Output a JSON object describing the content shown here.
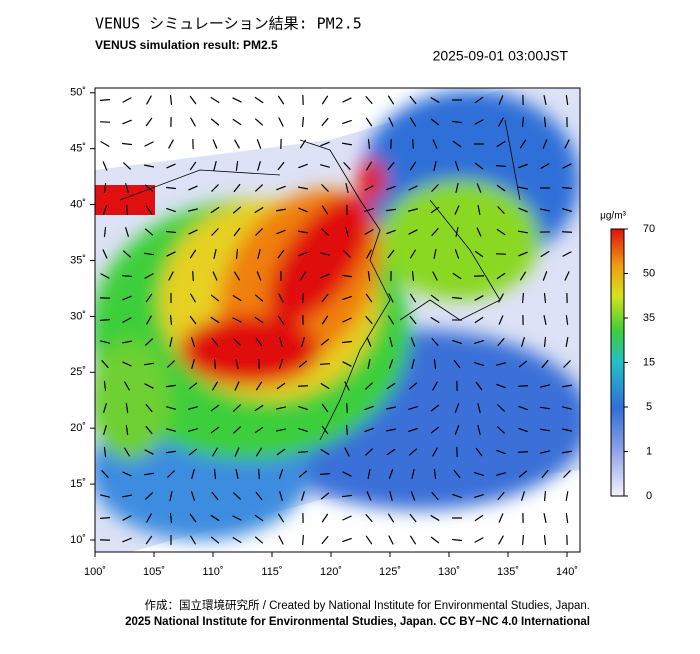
{
  "header": {
    "title_ja": "VENUS シミュレーション結果: PM2.5",
    "title_en": "VENUS simulation result: PM2.5",
    "timestamp": "2025-09-01 03:00JST"
  },
  "map": {
    "lon_ticks": [
      {
        "value": 100,
        "label": "100˚"
      },
      {
        "value": 105,
        "label": "105˚"
      },
      {
        "value": 110,
        "label": "110˚"
      },
      {
        "value": 115,
        "label": "115˚"
      },
      {
        "value": 120,
        "label": "120˚"
      },
      {
        "value": 125,
        "label": "125˚"
      },
      {
        "value": 130,
        "label": "130˚"
      },
      {
        "value": 135,
        "label": "135˚"
      },
      {
        "value": 140,
        "label": "140˚"
      }
    ],
    "lat_ticks": [
      {
        "value": 50,
        "label": "50˚"
      },
      {
        "value": 45,
        "label": "45˚"
      },
      {
        "value": 40,
        "label": "40˚"
      },
      {
        "value": 35,
        "label": "35˚"
      },
      {
        "value": 30,
        "label": "30˚"
      },
      {
        "value": 25,
        "label": "25˚"
      },
      {
        "value": 20,
        "label": "20˚"
      },
      {
        "value": 15,
        "label": "15˚"
      },
      {
        "value": 10,
        "label": "10˚"
      }
    ]
  },
  "colorbar": {
    "unit": "μg/m³",
    "ticks": [
      70,
      50,
      35,
      15,
      5,
      1,
      0
    ]
  },
  "footer": {
    "credit": "作成：国立環境研究所 / Created by National Institute for Environmental Studies, Japan.",
    "license": "2025 National Institute for Environmental Studies, Japan. CC BY−NC 4.0 International"
  }
}
